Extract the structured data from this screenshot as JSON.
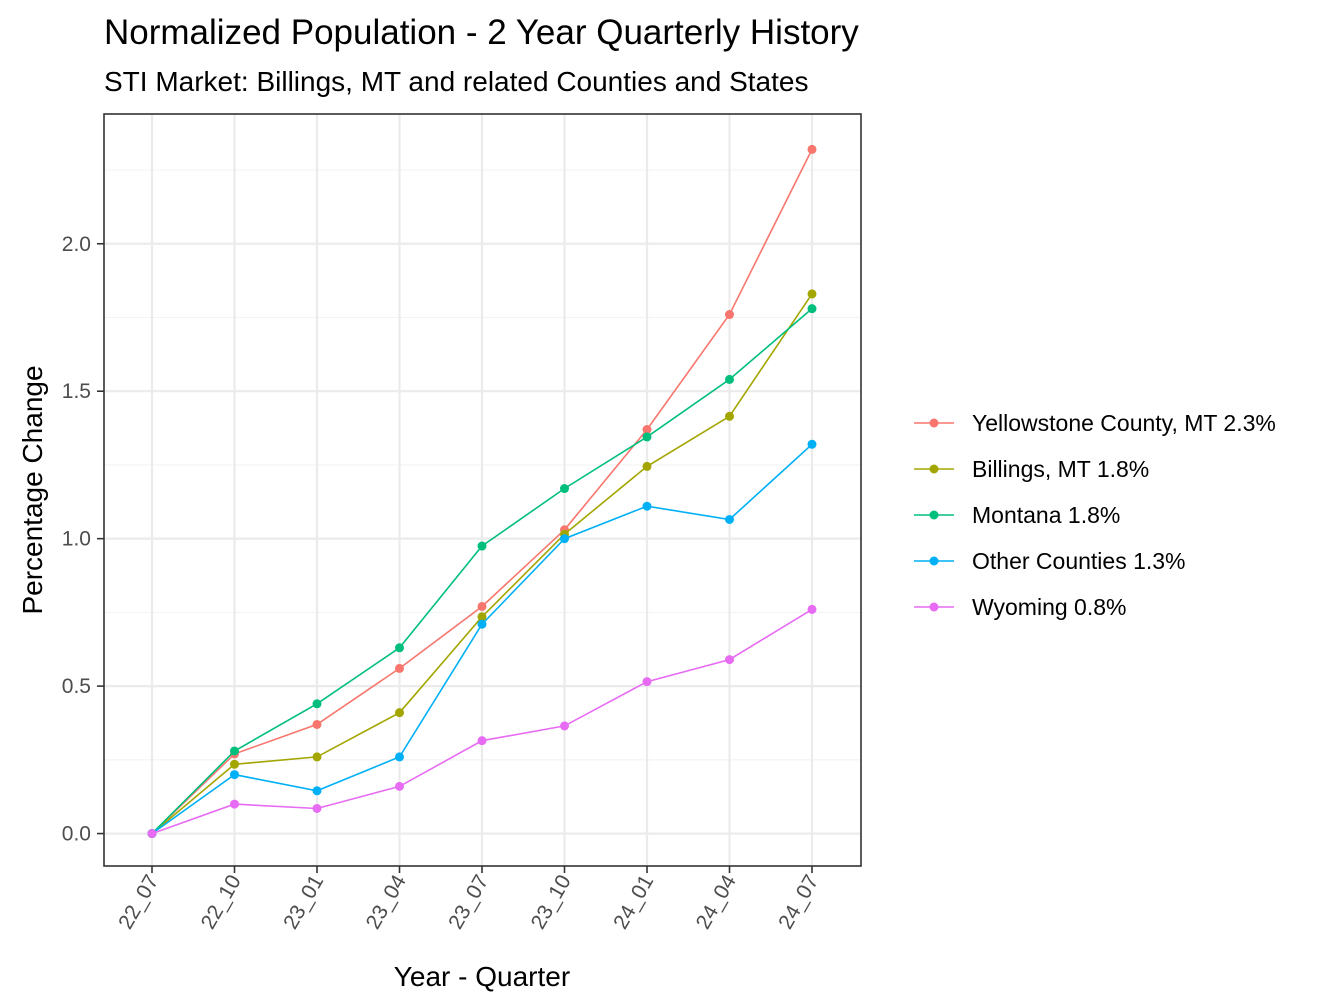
{
  "chart_data": {
    "type": "line",
    "title": "Normalized Population - 2 Year Quarterly History",
    "subtitle": "STI Market: Billings, MT and related Counties and States",
    "xlabel": "Year - Quarter",
    "ylabel": "Percentage Change",
    "categories": [
      "22_07",
      "22_10",
      "23_01",
      "23_04",
      "23_07",
      "23_10",
      "24_01",
      "24_04",
      "24_07"
    ],
    "ylim": [
      -0.11,
      2.44
    ],
    "yticks": [
      0.0,
      0.5,
      1.0,
      1.5,
      2.0
    ],
    "ytick_labels": [
      "0.0",
      "0.5",
      "1.0",
      "1.5",
      "2.0"
    ],
    "grid": true,
    "legend_position": "right",
    "series": [
      {
        "name": "Yellowstone County, MT 2.3%",
        "color": "#F8766D",
        "values": [
          0.0,
          0.27,
          0.37,
          0.56,
          0.77,
          1.03,
          1.37,
          1.76,
          2.32
        ]
      },
      {
        "name": "Billings, MT 1.8%",
        "color": "#A3A500",
        "values": [
          0.0,
          0.235,
          0.26,
          0.41,
          0.735,
          1.015,
          1.245,
          1.415,
          1.83
        ]
      },
      {
        "name": "Montana 1.8%",
        "color": "#00BF7D",
        "values": [
          0.0,
          0.28,
          0.44,
          0.63,
          0.975,
          1.17,
          1.345,
          1.54,
          1.78
        ]
      },
      {
        "name": "Other Counties 1.3%",
        "color": "#00B0F6",
        "values": [
          0.0,
          0.2,
          0.145,
          0.26,
          0.71,
          1.0,
          1.11,
          1.065,
          1.32
        ]
      },
      {
        "name": "Wyoming 0.8%",
        "color": "#E76BF3",
        "values": [
          0.0,
          0.1,
          0.085,
          0.16,
          0.315,
          0.365,
          0.515,
          0.59,
          0.76
        ]
      }
    ]
  }
}
